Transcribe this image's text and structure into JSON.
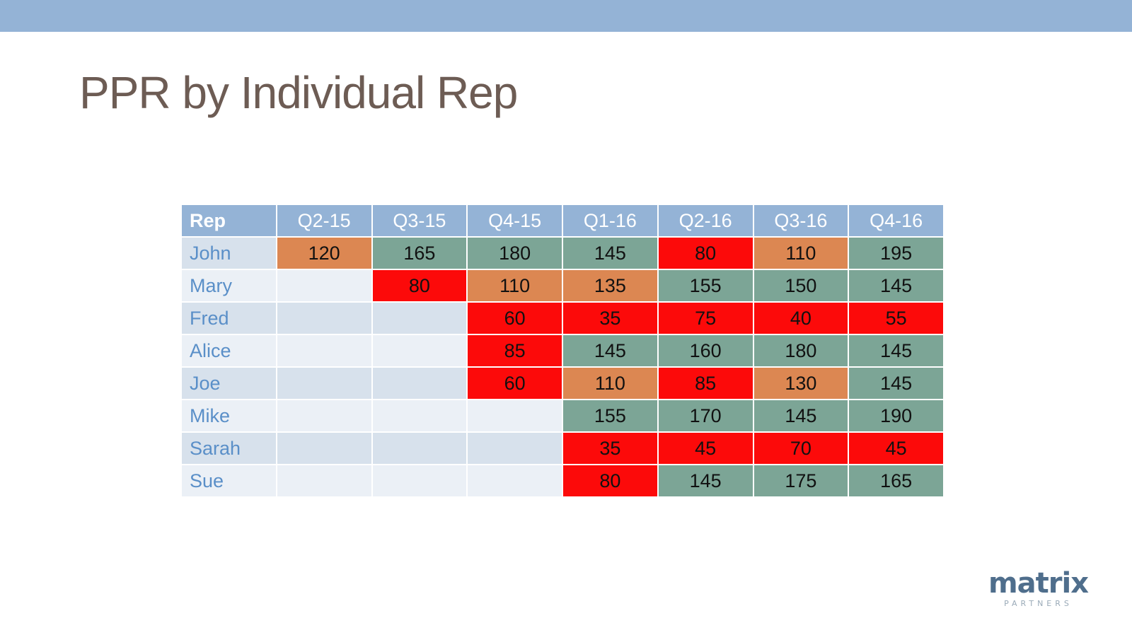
{
  "title": "PPR by Individual Rep",
  "colors": {
    "header_band": "#94b3d6",
    "below_target": "#fc0a0a",
    "near_target": "#dc8752",
    "at_target": "#7ca596"
  },
  "chart_data": {
    "type": "table",
    "title": "PPR by Individual Rep",
    "columns": [
      "Rep",
      "Q2-15",
      "Q3-15",
      "Q4-15",
      "Q1-16",
      "Q2-16",
      "Q3-16",
      "Q4-16"
    ],
    "rows": [
      {
        "rep": "John",
        "values": [
          120,
          165,
          180,
          145,
          80,
          110,
          195
        ],
        "status": [
          "orange",
          "green",
          "green",
          "green",
          "red",
          "orange",
          "green"
        ]
      },
      {
        "rep": "Mary",
        "values": [
          null,
          80,
          110,
          135,
          155,
          150,
          145
        ],
        "status": [
          null,
          "red",
          "orange",
          "orange",
          "green",
          "green",
          "green"
        ]
      },
      {
        "rep": "Fred",
        "values": [
          null,
          null,
          60,
          35,
          75,
          40,
          55
        ],
        "status": [
          null,
          null,
          "red",
          "red",
          "red",
          "red",
          "red"
        ]
      },
      {
        "rep": "Alice",
        "values": [
          null,
          null,
          85,
          145,
          160,
          180,
          145
        ],
        "status": [
          null,
          null,
          "red",
          "green",
          "green",
          "green",
          "green"
        ]
      },
      {
        "rep": "Joe",
        "values": [
          null,
          null,
          60,
          110,
          85,
          130,
          145
        ],
        "status": [
          null,
          null,
          "red",
          "orange",
          "red",
          "orange",
          "green"
        ]
      },
      {
        "rep": "Mike",
        "values": [
          null,
          null,
          null,
          155,
          170,
          145,
          190
        ],
        "status": [
          null,
          null,
          null,
          "green",
          "green",
          "green",
          "green"
        ]
      },
      {
        "rep": "Sarah",
        "values": [
          null,
          null,
          null,
          35,
          45,
          70,
          45
        ],
        "status": [
          null,
          null,
          null,
          "red",
          "red",
          "red",
          "red"
        ]
      },
      {
        "rep": "Sue",
        "values": [
          null,
          null,
          null,
          80,
          145,
          175,
          165
        ],
        "status": [
          null,
          null,
          null,
          "red",
          "green",
          "green",
          "green"
        ]
      }
    ]
  },
  "logo": {
    "word": "matrix",
    "sub": "PARTNERS"
  }
}
